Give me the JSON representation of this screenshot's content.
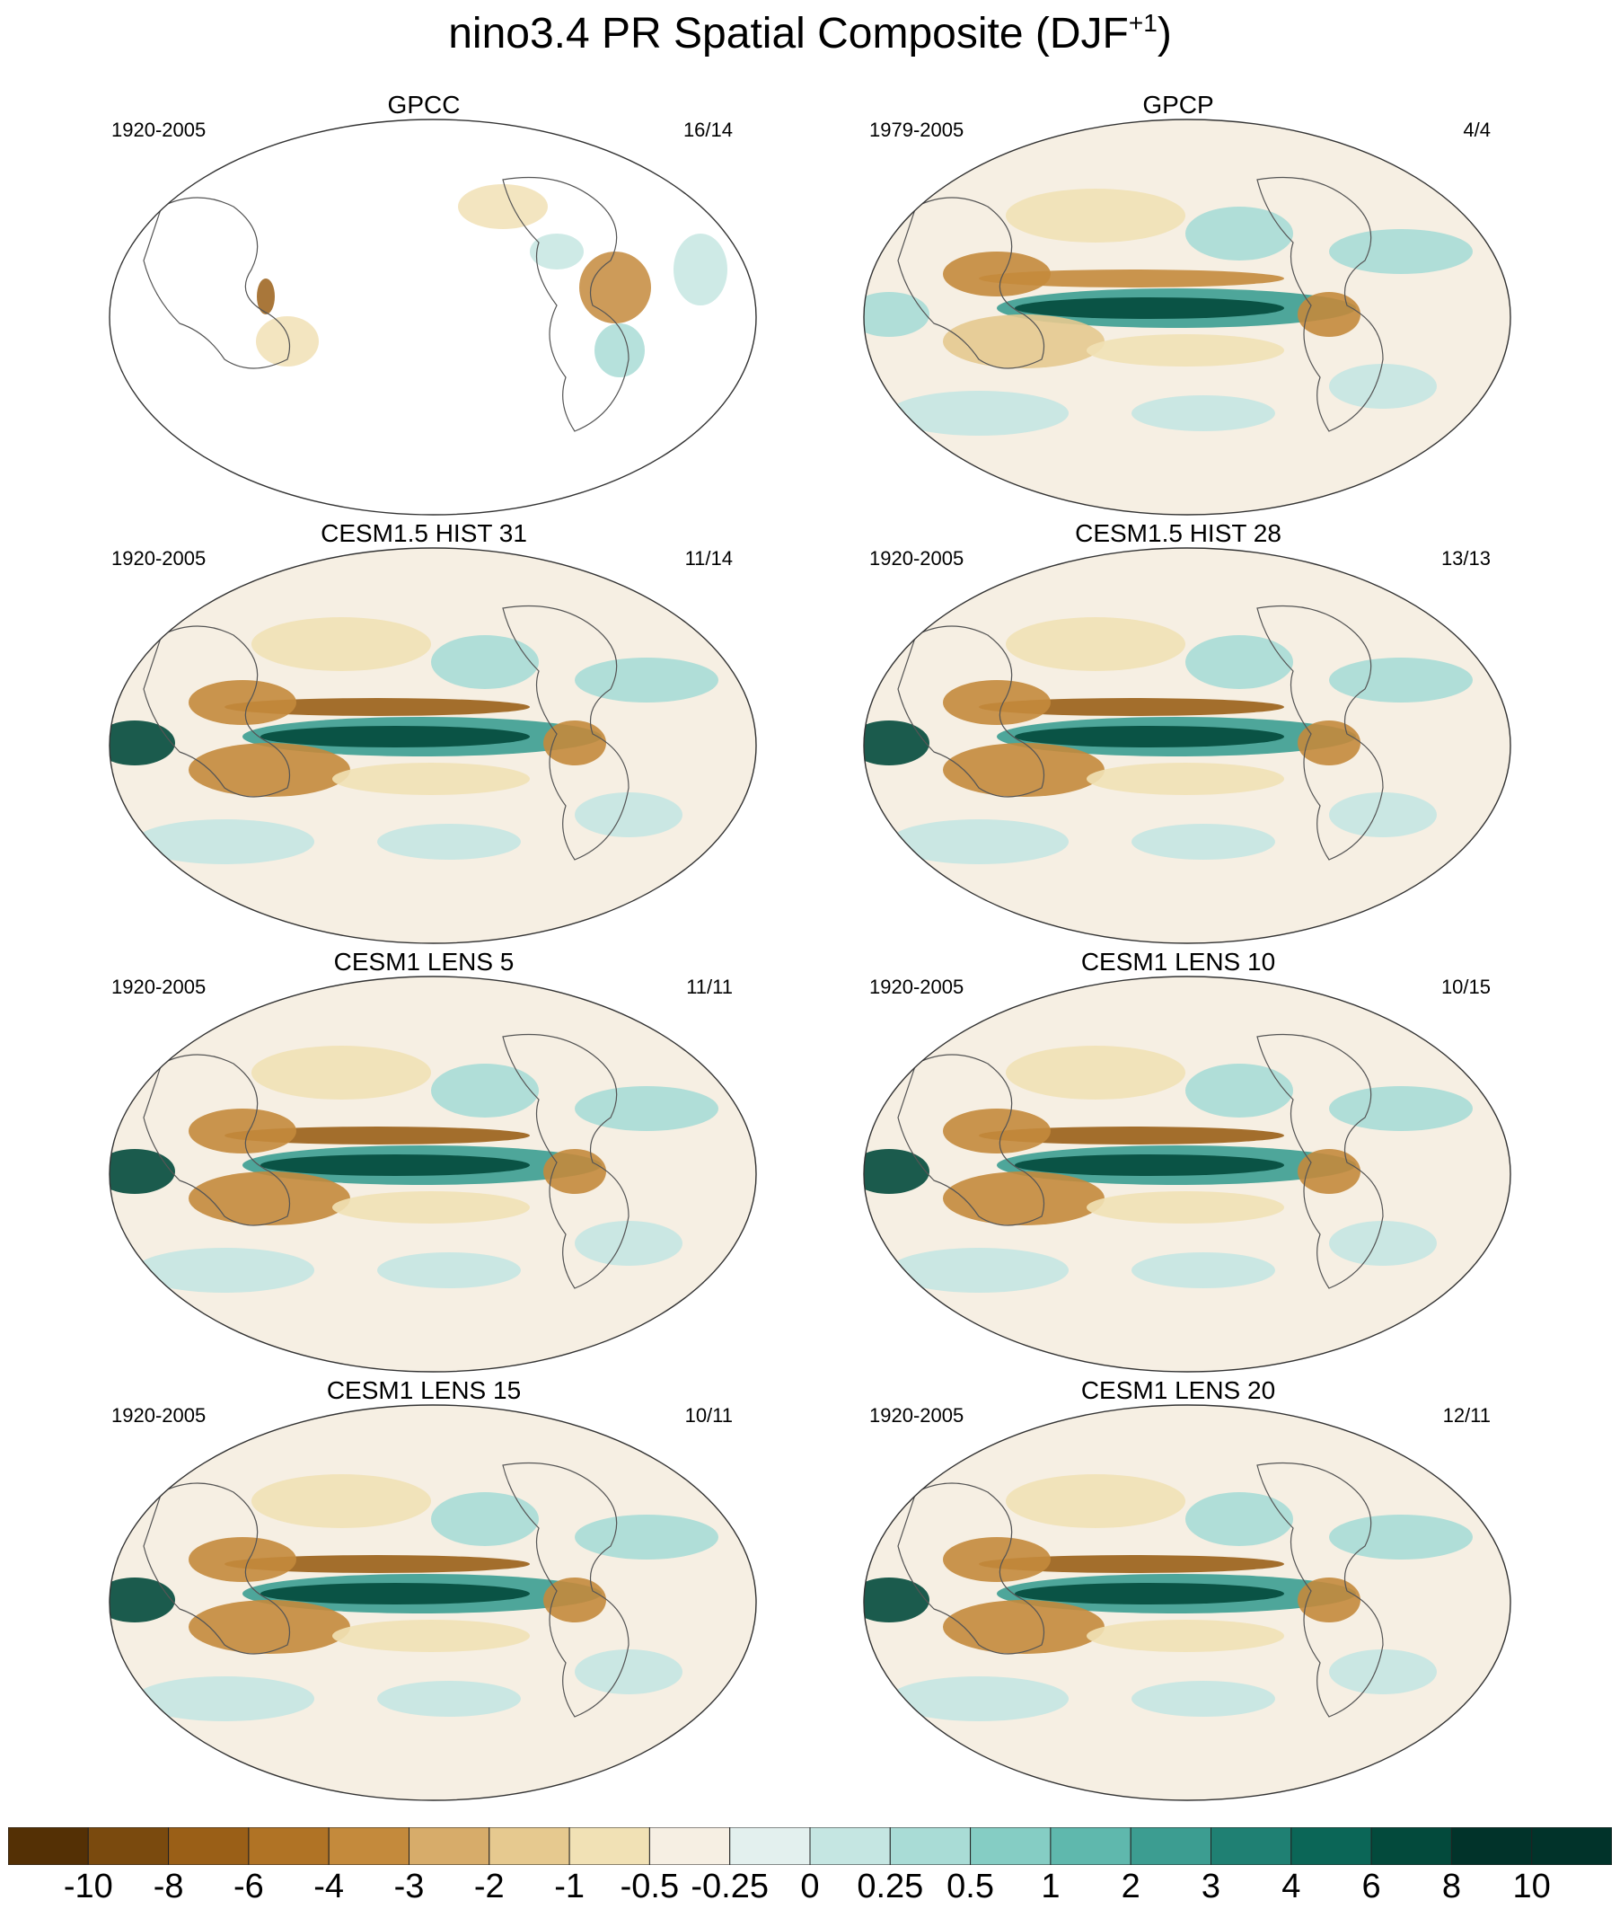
{
  "figure": {
    "title_main": "nino3.4 PR Spatial Composite (DJF",
    "title_sup": "+1",
    "title_end": ")"
  },
  "panels": [
    {
      "title": "GPCC",
      "years": "1920-2005",
      "ratio": "16/14",
      "kind": "obs_land"
    },
    {
      "title": "GPCP",
      "years": "1979-2005",
      "ratio": "4/4",
      "kind": "obs_full"
    },
    {
      "title": "CESM1.5 HIST 31",
      "years": "1920-2005",
      "ratio": "11/14",
      "kind": "model"
    },
    {
      "title": "CESM1.5 HIST 28",
      "years": "1920-2005",
      "ratio": "13/13",
      "kind": "model"
    },
    {
      "title": "CESM1 LENS 5",
      "years": "1920-2005",
      "ratio": "11/11",
      "kind": "model"
    },
    {
      "title": "CESM1 LENS 10",
      "years": "1920-2005",
      "ratio": "10/15",
      "kind": "model"
    },
    {
      "title": "CESM1 LENS 15",
      "years": "1920-2005",
      "ratio": "10/11",
      "kind": "model"
    },
    {
      "title": "CESM1 LENS 20",
      "years": "1920-2005",
      "ratio": "12/11",
      "kind": "model"
    }
  ],
  "colorbar": {
    "labels": [
      "-10",
      "-8",
      "-6",
      "-4",
      "-3",
      "-2",
      "-1",
      "-0.5",
      "-0.25",
      "0",
      "0.25",
      "0.5",
      "1",
      "2",
      "3",
      "4",
      "6",
      "8",
      "10"
    ],
    "colors": [
      "#543005",
      "#7a4a0e",
      "#9a5f17",
      "#b07325",
      "#c48a3c",
      "#d7ac6a",
      "#e6c98f",
      "#f1e1b5",
      "#f6efe3",
      "#e3f0ee",
      "#c5e6e2",
      "#a9dcd6",
      "#85cdc4",
      "#5fb8ad",
      "#3c9d91",
      "#1f8073",
      "#0b6657",
      "#034a3c",
      "#01332a"
    ]
  },
  "chart_data": {
    "type": "map",
    "projection": "Robinson (Pacific-centered)",
    "title": "nino3.4 PR Spatial Composite (DJF+1)",
    "panels": [
      "GPCC",
      "GPCP",
      "CESM1.5 HIST 31",
      "CESM1.5 HIST 28",
      "CESM1 LENS 5",
      "CESM1 LENS 10",
      "CESM1 LENS 15",
      "CESM1 LENS 20"
    ],
    "contour_levels": [
      -10,
      -8,
      -6,
      -4,
      -3,
      -2,
      -1,
      -0.5,
      -0.25,
      0,
      0.25,
      0.5,
      1,
      2,
      3,
      4,
      6,
      8,
      10
    ],
    "grid": false,
    "legend": "bottom"
  }
}
